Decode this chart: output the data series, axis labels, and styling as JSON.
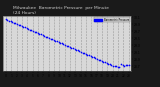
{
  "title": "Milwaukee  Barometric Pressure  per Minute\n(24 Hours)",
  "title_fontsize": 3.2,
  "outer_bg_color": "#1a1a1a",
  "plot_bg_color": "#d8d8d8",
  "line_color": "#0000ff",
  "grid_color": "#999999",
  "grid_style": "--",
  "tick_color": "#000000",
  "text_color": "#000000",
  "x_values": [
    0.0,
    0.3,
    0.6,
    0.9,
    1.2,
    1.5,
    1.8,
    2.1,
    2.4,
    2.7,
    3.0,
    3.3,
    3.6,
    3.9,
    4.2,
    4.5,
    4.8,
    5.1,
    5.4,
    5.7,
    6.0,
    6.3,
    6.6,
    6.9,
    7.2,
    7.5,
    7.8,
    8.1,
    8.4,
    8.7,
    9.0,
    9.3,
    9.6,
    9.9,
    10.2,
    10.5,
    10.8,
    11.1,
    11.4,
    11.7,
    12.0,
    12.3,
    12.6,
    12.9,
    13.2,
    13.5,
    13.8,
    14.1,
    14.4,
    14.7,
    15.0,
    15.3,
    15.6,
    15.9,
    16.2,
    16.5,
    16.8,
    17.1,
    17.4,
    17.7,
    18.0,
    18.3,
    18.6,
    18.9,
    19.2,
    19.5,
    19.8,
    20.1,
    20.4,
    20.7,
    21.0,
    21.3,
    21.6,
    21.9,
    22.2,
    22.5,
    22.8,
    23.0
  ],
  "y_values": [
    30.05,
    30.03,
    30.01,
    29.99,
    29.97,
    29.95,
    29.93,
    29.91,
    29.89,
    29.87,
    29.85,
    29.83,
    29.81,
    29.79,
    29.77,
    29.75,
    29.73,
    29.71,
    29.69,
    29.67,
    29.65,
    29.63,
    29.61,
    29.59,
    29.57,
    29.55,
    29.53,
    29.51,
    29.49,
    29.47,
    29.45,
    29.43,
    29.41,
    29.39,
    29.37,
    29.35,
    29.33,
    29.31,
    29.29,
    29.27,
    29.25,
    29.23,
    29.21,
    29.19,
    29.17,
    29.15,
    29.13,
    29.11,
    29.09,
    29.07,
    29.05,
    29.03,
    29.01,
    28.99,
    28.97,
    28.95,
    28.93,
    28.91,
    28.89,
    28.87,
    28.85,
    28.83,
    28.81,
    28.79,
    28.77,
    28.75,
    28.73,
    28.71,
    28.7,
    28.69,
    28.68,
    28.67,
    28.75,
    28.73,
    28.71,
    28.74,
    28.72,
    28.72
  ],
  "xlim": [
    -0.5,
    23.5
  ],
  "ylim": [
    28.55,
    30.15
  ],
  "xticks": [
    0,
    1,
    2,
    3,
    4,
    5,
    6,
    7,
    8,
    9,
    10,
    11,
    12,
    13,
    14,
    15,
    16,
    17,
    18,
    19,
    20,
    21,
    22,
    23
  ],
  "yticks": [
    28.7,
    28.9,
    29.1,
    29.3,
    29.5,
    29.7,
    29.9,
    30.1
  ],
  "ytick_labels": [
    "28.7",
    "28.9",
    "29.1",
    "29.3",
    "29.5",
    "29.7",
    "29.9",
    "30.1"
  ],
  "legend_label": "Barometric Pressure",
  "marker_size": 1.5
}
